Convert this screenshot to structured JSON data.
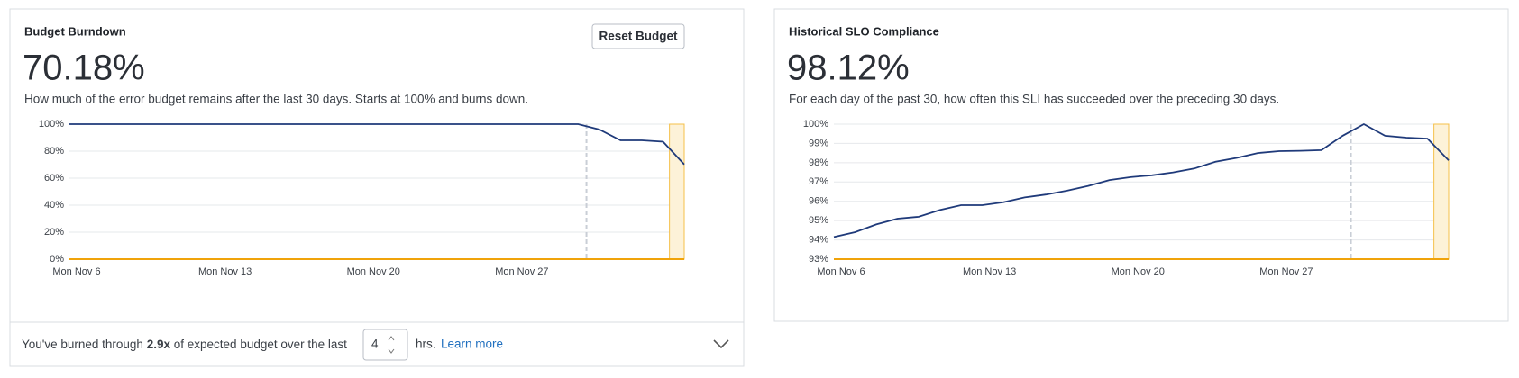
{
  "panels": [
    {
      "title": "Budget Burndown",
      "headline": "70.18%",
      "description": "How much of the error budget remains after the last 30 days. Starts at 100% and burns down.",
      "button": "Reset Budget",
      "chart": {
        "type": "line",
        "color": "#1f3a7a",
        "categories": [
          "Mon Nov 6",
          null,
          null,
          null,
          null,
          null,
          null,
          "Mon Nov 13",
          null,
          null,
          null,
          null,
          null,
          null,
          "Mon Nov 20",
          null,
          null,
          null,
          null,
          null,
          null,
          "Mon Nov 27",
          null,
          null,
          null,
          null,
          null,
          null,
          null,
          null
        ],
        "values": [
          100,
          100,
          100,
          100,
          100,
          100,
          100,
          100,
          100,
          100,
          100,
          100,
          100,
          100,
          100,
          100,
          100,
          100,
          100,
          100,
          100,
          100,
          100,
          100,
          100,
          96,
          88,
          88,
          87,
          70.18
        ],
        "ylim": [
          0,
          100
        ],
        "yticks": [
          {
            "value": 0,
            "label": "0%"
          },
          {
            "value": 20,
            "label": "20%"
          },
          {
            "value": 40,
            "label": "40%"
          },
          {
            "value": 60,
            "label": "60%"
          },
          {
            "value": 80,
            "label": "80%"
          },
          {
            "value": 100,
            "label": "100%"
          }
        ],
        "grid": true
      }
    },
    {
      "title": "Historical SLO Compliance",
      "headline": "98.12%",
      "description": "For each day of the past 30, how often this SLI has succeeded over the preceding 30 days.",
      "chart": {
        "type": "line",
        "color": "#1f3a7a",
        "categories": [
          "Mon Nov 6",
          null,
          null,
          null,
          null,
          null,
          null,
          "Mon Nov 13",
          null,
          null,
          null,
          null,
          null,
          null,
          "Mon Nov 20",
          null,
          null,
          null,
          null,
          null,
          null,
          "Mon Nov 27",
          null,
          null,
          null,
          null,
          null,
          null,
          null,
          null
        ],
        "values": [
          94.15,
          94.4,
          94.8,
          95.1,
          95.2,
          95.55,
          95.8,
          95.8,
          95.95,
          96.2,
          96.35,
          96.55,
          96.8,
          97.1,
          97.25,
          97.35,
          97.5,
          97.7,
          98.05,
          98.25,
          98.5,
          98.6,
          98.62,
          98.65,
          99.4,
          100,
          99.4,
          99.3,
          99.25,
          98.12
        ],
        "ylim": [
          93,
          100
        ],
        "yticks": [
          {
            "value": 93,
            "label": "93%"
          },
          {
            "value": 94,
            "label": "94%"
          },
          {
            "value": 95,
            "label": "95%"
          },
          {
            "value": 96,
            "label": "96%"
          },
          {
            "value": 97,
            "label": "97%"
          },
          {
            "value": 98,
            "label": "98%"
          },
          {
            "value": 99,
            "label": "99%"
          },
          {
            "value": 100,
            "label": "100%"
          }
        ],
        "grid": true
      }
    }
  ],
  "footer": {
    "prefix": "You've burned through",
    "rate": "2.9x",
    "middle": "of expected budget over the last",
    "hours": 4,
    "unit": "hrs.",
    "link": "Learn more"
  }
}
